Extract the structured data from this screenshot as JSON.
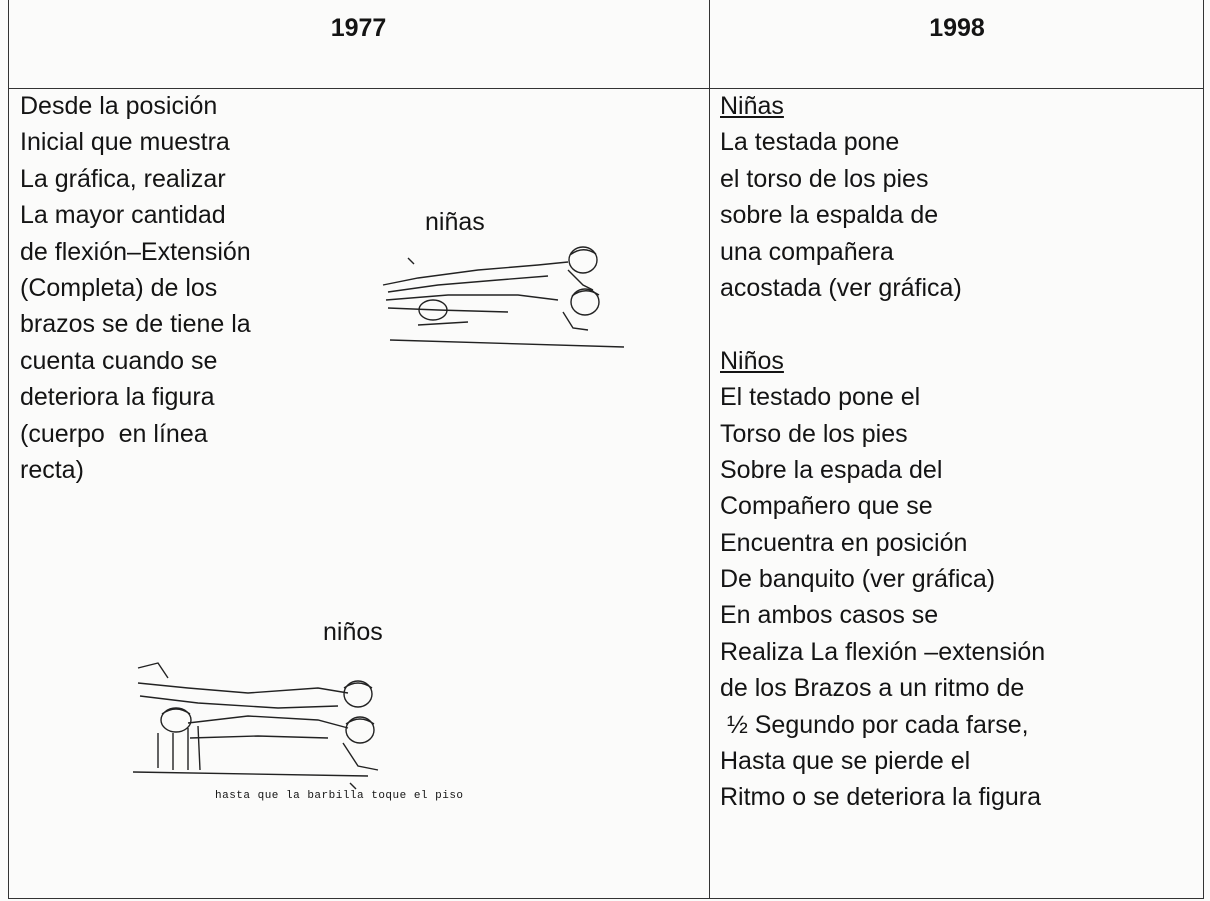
{
  "header": {
    "columns": [
      "1977",
      "1998"
    ]
  },
  "left": {
    "lines": [
      "Desde la posición",
      "Inicial que muestra",
      "La gráfica, realizar",
      "La mayor cantidad",
      "de flexión–Extensión",
      "(Completa) de los",
      "brazos se de tiene la",
      "cuenta cuando se",
      "deteriora la figura",
      "(cuerpo  en línea",
      "recta)"
    ],
    "figures": [
      {
        "label": "niñas"
      },
      {
        "label": "niños",
        "caption": "hasta que la barbilla toque el piso"
      }
    ]
  },
  "right": {
    "sections": [
      {
        "heading": "Niñas",
        "lines": [
          "La testada pone",
          "el torso de los pies",
          "sobre la espalda de",
          "una compañera",
          "acostada (ver gráfica)"
        ]
      },
      {
        "heading": "Niños",
        "lines": [
          "El testado pone el",
          "Torso de los pies",
          "Sobre la espada del",
          "Compañero que se",
          "Encuentra en posición",
          "De banquito (ver gráfica)",
          "En ambos casos se",
          "Realiza La flexión –extensión",
          "de los Brazos a un ritmo de",
          " ½ Segundo por cada farse,",
          "Hasta que se pierde el",
          "Ritmo o se deteriora la figura"
        ]
      }
    ]
  }
}
